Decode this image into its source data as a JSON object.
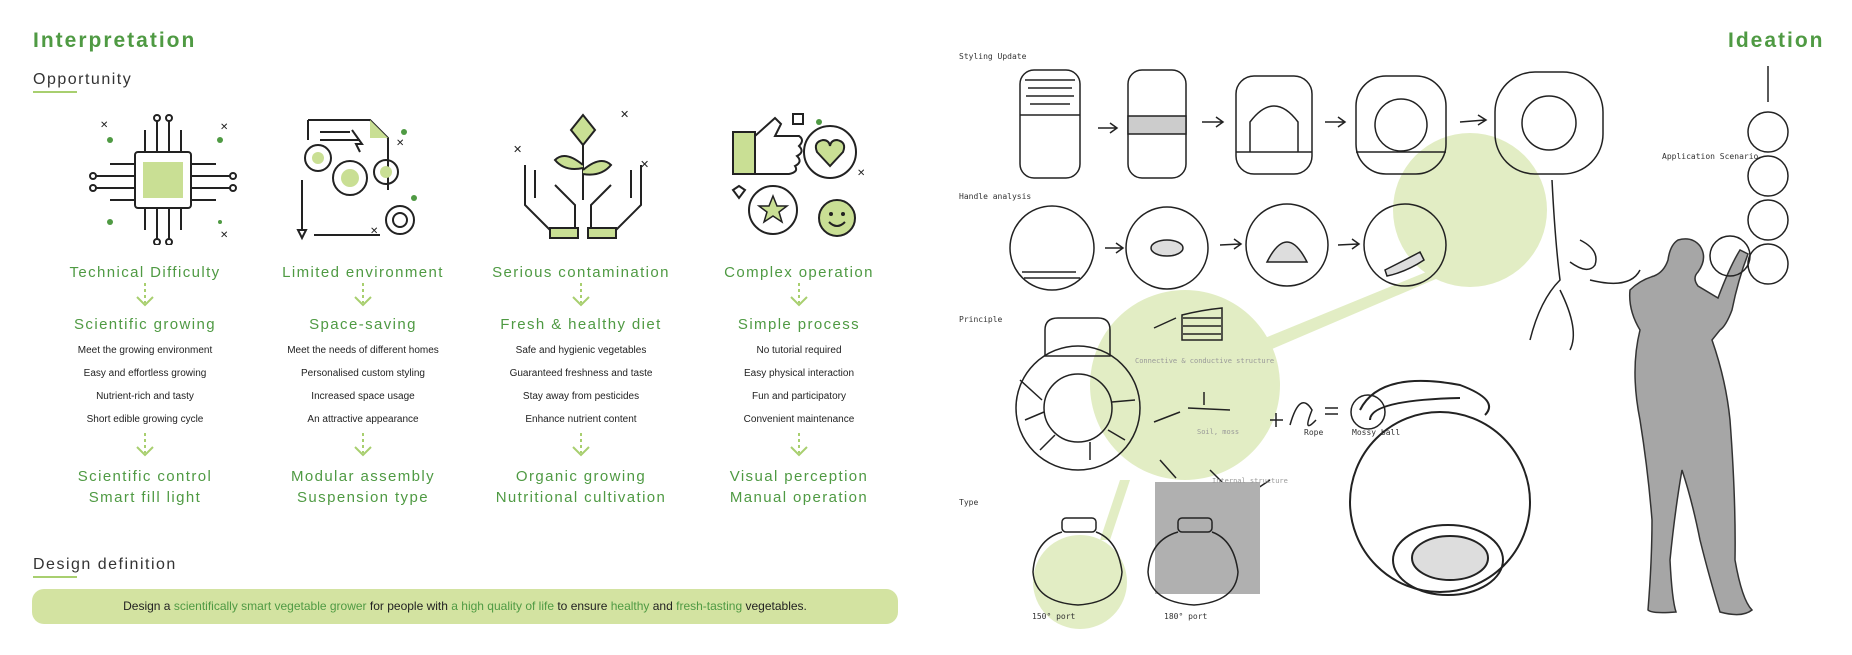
{
  "left": {
    "title": "Interpretation",
    "opportunity_heading": "Opportunity",
    "columns": [
      {
        "icon": "chip-icon",
        "problem": "Technical Difficulty",
        "solution": "Scientific growing",
        "details": [
          "Meet the growing environment",
          "Easy and effortless growing",
          "Nutrient-rich and tasty",
          "Short edible growing cycle"
        ],
        "outcome_1": "Scientific control",
        "outcome_2": "Smart fill light"
      },
      {
        "icon": "gears-document-icon",
        "problem": "Limited environment",
        "solution": "Space-saving",
        "details": [
          "Meet the needs of different homes",
          "Personalised custom styling",
          "Increased space usage",
          "An attractive appearance"
        ],
        "outcome_1": "Modular assembly",
        "outcome_2": "Suspension type"
      },
      {
        "icon": "hands-plant-icon",
        "problem": "Serious contamination",
        "solution": "Fresh & healthy diet",
        "details": [
          "Safe and hygienic vegetables",
          "Guaranteed freshness and taste",
          "Stay away from pesticides",
          "Enhance nutrient content"
        ],
        "outcome_1": "Organic growing",
        "outcome_2": "Nutritional cultivation"
      },
      {
        "icon": "thumbs-up-feedback-icon",
        "problem": "Complex operation",
        "solution": "Simple process",
        "details": [
          "No tutorial required",
          "Easy physical interaction",
          "Fun and participatory",
          "Convenient maintenance"
        ],
        "outcome_1": "Visual perception",
        "outcome_2": "Manual operation"
      }
    ],
    "design_definition_heading": "Design definition",
    "definition": {
      "p1": "Design a ",
      "h1": "scientifically smart vegetable grower",
      "p2": " for people with ",
      "h2": "a high quality of life",
      "p3": " to ensure ",
      "h3": "healthy",
      "p4": " and ",
      "h4": "fresh-tasting",
      "p5": " vegetables."
    }
  },
  "right": {
    "title": "Ideation",
    "labels": {
      "styling": "Styling Update",
      "handle": "Handle analysis",
      "principle": "Principle",
      "type": "Type",
      "scenario": "Application Scenario",
      "connective": "Connective & conductive structure",
      "soil": "Soil, moss",
      "rope": "Rope",
      "mossy": "Mossy ball",
      "internal": "Internal structure",
      "port150": "150° port",
      "port180": "180° port"
    }
  },
  "colors": {
    "accent_green": "#4f9a43",
    "light_green": "#a8cf6f",
    "banner_bg": "#d3e3a1",
    "blob": "#e2edc4"
  }
}
